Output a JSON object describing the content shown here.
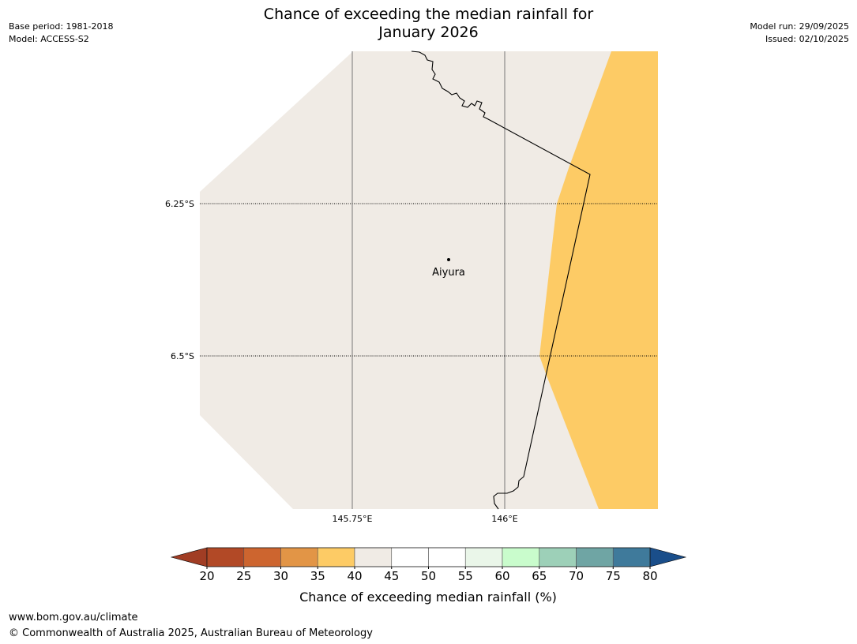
{
  "header": {
    "base_period": "Base period: 1981-2018",
    "model": "Model: ACCESS-S2",
    "model_run": "Model run: 29/09/2025",
    "issued": "Issued: 02/10/2025"
  },
  "title": {
    "line1": "Chance of exceeding the median rainfall for",
    "line2": "January 2026"
  },
  "map": {
    "latitude_labels": [
      "6.25°S",
      "6.5°S"
    ],
    "longitude_labels": [
      "145.75°E",
      "146°E"
    ],
    "place": {
      "name": "Aiyura"
    },
    "region_colors": {
      "no_data": "#ffffff",
      "band_40_45": "#f0ebe5",
      "band_35_40": "#fdcb65"
    }
  },
  "colorbar": {
    "label": "Chance of exceeding median rainfall (%)",
    "ticks": [
      "20",
      "25",
      "30",
      "35",
      "40",
      "45",
      "50",
      "55",
      "60",
      "65",
      "70",
      "75",
      "80"
    ],
    "low_extend_color": "#a13d24",
    "high_extend_color": "#1a4e8a",
    "colors": [
      "#b24926",
      "#cd652f",
      "#e29546",
      "#fdcb65",
      "#f0ebe5",
      "#ffffff",
      "#ffffff",
      "#eaf6e9",
      "#c9fccc",
      "#9dd0b8",
      "#6fa5a4",
      "#3f7a9b"
    ]
  },
  "footer": {
    "url": "www.bom.gov.au/climate",
    "copyright": "© Commonwealth of Australia 2025, Australian Bureau of Meteorology"
  }
}
